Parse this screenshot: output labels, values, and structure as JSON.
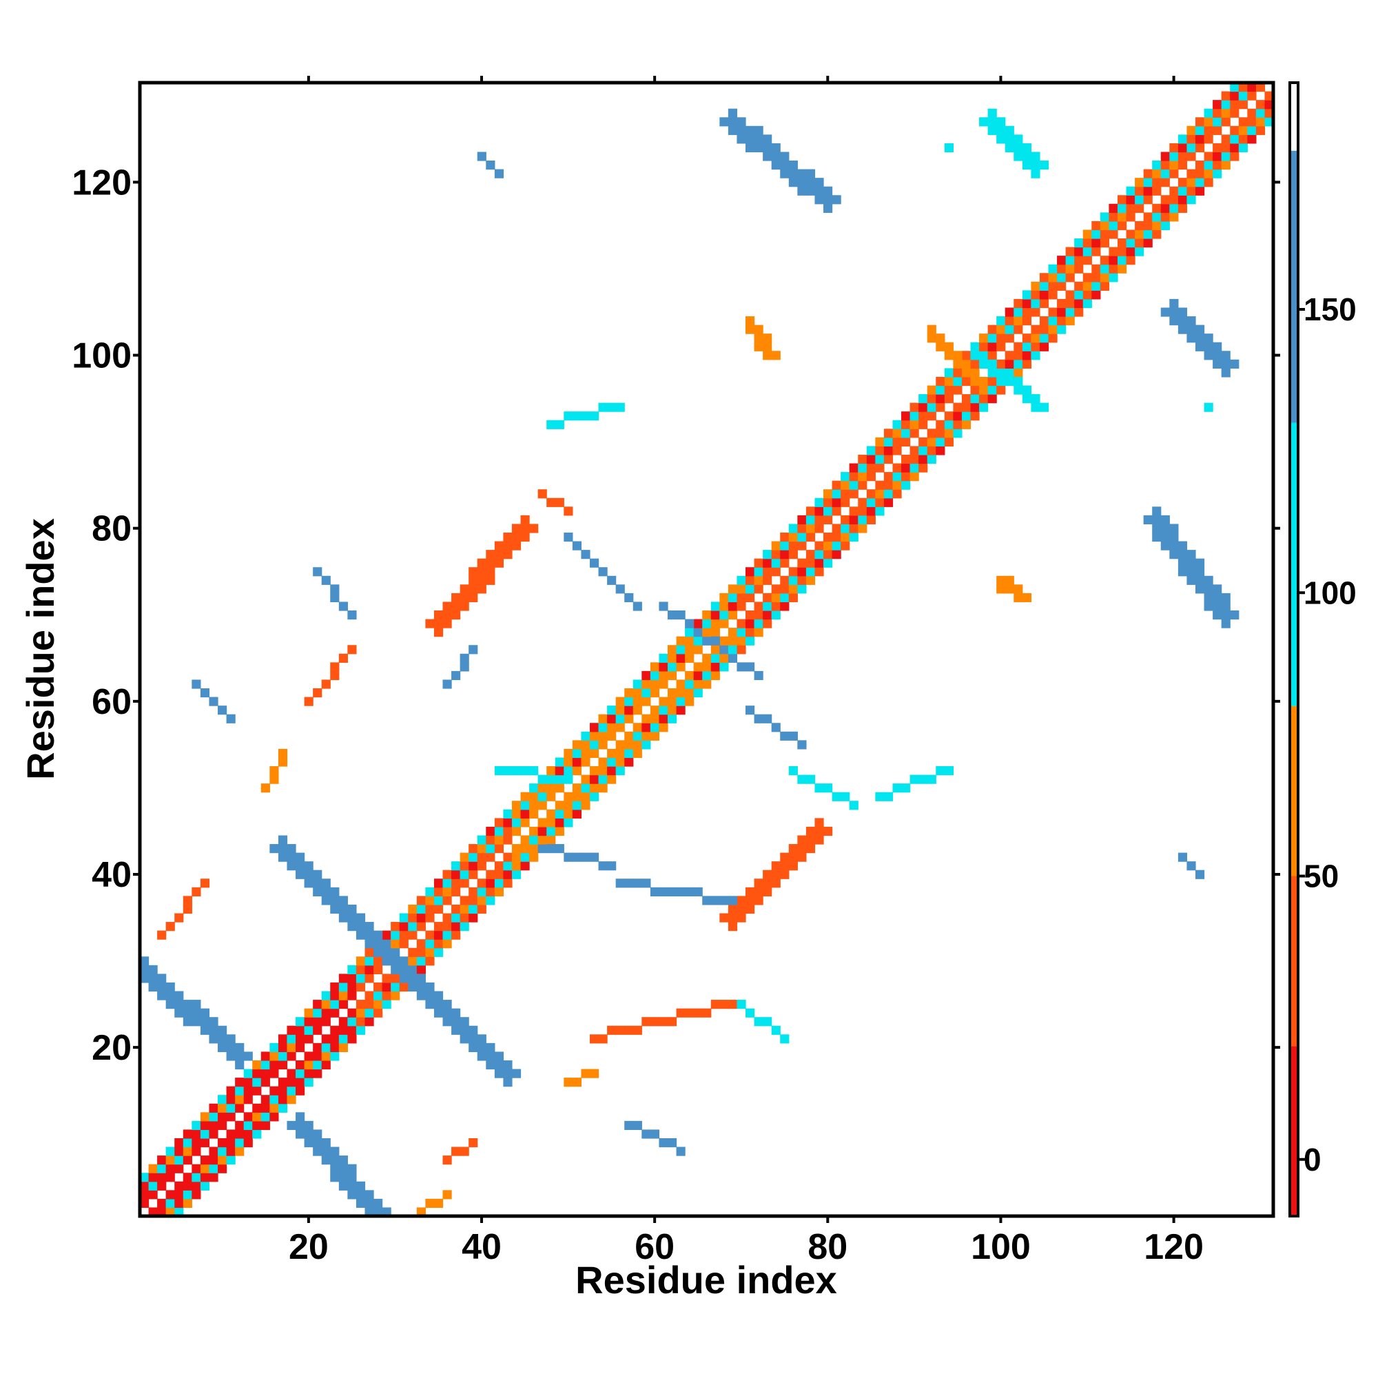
{
  "chart_data": {
    "type": "heatmap",
    "title": "",
    "xlabel": "Residue index",
    "ylabel": "Residue index",
    "xlim": [
      1,
      131
    ],
    "ylim": [
      1,
      131
    ],
    "x_ticks": [
      20,
      40,
      60,
      80,
      100,
      120
    ],
    "y_ticks": [
      20,
      40,
      60,
      80,
      100,
      120
    ],
    "x_tick_labels": [
      "20",
      "40",
      "60",
      "80",
      "100",
      "120"
    ],
    "y_tick_labels": [
      "20",
      "40",
      "60",
      "80",
      "100",
      "120"
    ],
    "grid": false,
    "legend": "none",
    "colorbar": {
      "placement": "right",
      "range": [
        -10,
        190
      ],
      "ticks": [
        0,
        50,
        100,
        150
      ],
      "tick_labels": [
        "0",
        "50",
        "100",
        "150"
      ],
      "bands": [
        {
          "from": -10,
          "to": 20,
          "color": "#ee1111"
        },
        {
          "from": 20,
          "to": 50,
          "color": "#ff5511"
        },
        {
          "from": 50,
          "to": 80,
          "color": "#ff8800"
        },
        {
          "from": 80,
          "to": 130,
          "color": "#00e5ee"
        },
        {
          "from": 130,
          "to": 178,
          "color": "#4a90c8"
        },
        {
          "from": 178,
          "to": 190,
          "color": "#ffffff"
        }
      ]
    },
    "diagonal_band": {
      "from": 1,
      "to": 131,
      "half_width": 4,
      "segments": [
        {
          "from": 1,
          "to": 26,
          "value": 15
        },
        {
          "from": 26,
          "to": 44,
          "value": 25
        },
        {
          "from": 44,
          "to": 70,
          "value": 65
        },
        {
          "from": 70,
          "to": 131,
          "value": 30
        }
      ],
      "alternate_values": [
        95,
        60,
        10
      ]
    },
    "patches": [
      {
        "x": [
          19,
          28
        ],
        "y": [
          11,
          1
        ],
        "value": 140,
        "w": 3
      },
      {
        "x": [
          17,
          31
        ],
        "y": [
          43,
          29
        ],
        "value": 150,
        "w": 3
      },
      {
        "x": [
          31,
          43
        ],
        "y": [
          29,
          17
        ],
        "value": 150,
        "w": 3
      },
      {
        "x": [
          1,
          12
        ],
        "y": [
          29,
          19
        ],
        "value": 145,
        "w": 3
      },
      {
        "x": [
          69,
          79
        ],
        "y": [
          35,
          45
        ],
        "value": 40,
        "w": 3
      },
      {
        "x": [
          35,
          45
        ],
        "y": [
          69,
          80
        ],
        "value": 40,
        "w": 3
      },
      {
        "x": [
          69,
          80
        ],
        "y": [
          127,
          118
        ],
        "value": 150,
        "w": 3
      },
      {
        "x": [
          99,
          104
        ],
        "y": [
          127,
          122
        ],
        "value": 120,
        "w": 3
      },
      {
        "x": [
          118,
          126
        ],
        "y": [
          81,
          70
        ],
        "value": 150,
        "w": 3
      },
      {
        "x": [
          120,
          126
        ],
        "y": [
          105,
          99
        ],
        "value": 130,
        "w": 3
      },
      {
        "x": [
          97,
          104
        ],
        "y": [
          100,
          94
        ],
        "value": 120,
        "w": 2
      },
      {
        "x": [
          92,
          97
        ],
        "y": [
          102,
          97
        ],
        "value": 60,
        "w": 2
      },
      {
        "x": [
          100,
          102
        ],
        "y": [
          73,
          72
        ],
        "value": 55,
        "w": 2
      },
      {
        "x": [
          71,
          73
        ],
        "y": [
          103,
          100
        ],
        "value": 55,
        "w": 2
      },
      {
        "x": [
          36,
          39
        ],
        "y": [
          7,
          9
        ],
        "value": 30,
        "w": 1
      },
      {
        "x": [
          33,
          36
        ],
        "y": [
          1,
          3
        ],
        "value": 55,
        "w": 1
      },
      {
        "x": [
          3,
          8
        ],
        "y": [
          33,
          39
        ],
        "value": 45,
        "w": 1
      },
      {
        "x": [
          53,
          69
        ],
        "y": [
          21,
          25
        ],
        "value": 40,
        "w": 1
      },
      {
        "x": [
          50,
          53
        ],
        "y": [
          16,
          17
        ],
        "value": 60,
        "w": 1
      },
      {
        "x": [
          57,
          63
        ],
        "y": [
          11,
          8
        ],
        "value": 140,
        "w": 1
      },
      {
        "x": [
          70,
          75
        ],
        "y": [
          25,
          21
        ],
        "value": 120,
        "w": 1
      },
      {
        "x": [
          56,
          69
        ],
        "y": [
          39,
          37
        ],
        "value": 140,
        "w": 1
      },
      {
        "x": [
          47,
          55
        ],
        "y": [
          43,
          41
        ],
        "value": 130,
        "w": 1
      },
      {
        "x": [
          42,
          50
        ],
        "y": [
          52,
          51
        ],
        "value": 110,
        "w": 1
      },
      {
        "x": [
          76,
          83
        ],
        "y": [
          52,
          48
        ],
        "value": 100,
        "w": 1
      },
      {
        "x": [
          86,
          94
        ],
        "y": [
          49,
          52
        ],
        "value": 110,
        "w": 1
      },
      {
        "x": [
          71,
          77
        ],
        "y": [
          59,
          55
        ],
        "value": 140,
        "w": 1
      },
      {
        "x": [
          61,
          72
        ],
        "y": [
          71,
          63
        ],
        "value": 150,
        "w": 1
      },
      {
        "x": [
          50,
          58
        ],
        "y": [
          79,
          71
        ],
        "value": 130,
        "w": 1
      },
      {
        "x": [
          47,
          50
        ],
        "y": [
          84,
          82
        ],
        "value": 40,
        "w": 1
      },
      {
        "x": [
          48,
          56
        ],
        "y": [
          92,
          94
        ],
        "value": 110,
        "w": 1
      },
      {
        "x": [
          21,
          25
        ],
        "y": [
          75,
          70
        ],
        "value": 140,
        "w": 1
      },
      {
        "x": [
          20,
          25
        ],
        "y": [
          60,
          66
        ],
        "value": 45,
        "w": 1
      },
      {
        "x": [
          7,
          11
        ],
        "y": [
          62,
          58
        ],
        "value": 140,
        "w": 1
      },
      {
        "x": [
          15,
          17
        ],
        "y": [
          50,
          54
        ],
        "value": 55,
        "w": 1
      },
      {
        "x": [
          36,
          39
        ],
        "y": [
          62,
          66
        ],
        "value": 130,
        "w": 1
      },
      {
        "x": [
          40,
          42
        ],
        "y": [
          123,
          121
        ],
        "value": 140,
        "w": 1
      },
      {
        "x": [
          94,
          94
        ],
        "y": [
          124,
          124
        ],
        "value": 110,
        "w": 1
      },
      {
        "x": [
          121,
          123
        ],
        "y": [
          42,
          40
        ],
        "value": 140,
        "w": 1
      },
      {
        "x": [
          124,
          124
        ],
        "y": [
          94,
          94
        ],
        "value": 110,
        "w": 1
      }
    ]
  }
}
